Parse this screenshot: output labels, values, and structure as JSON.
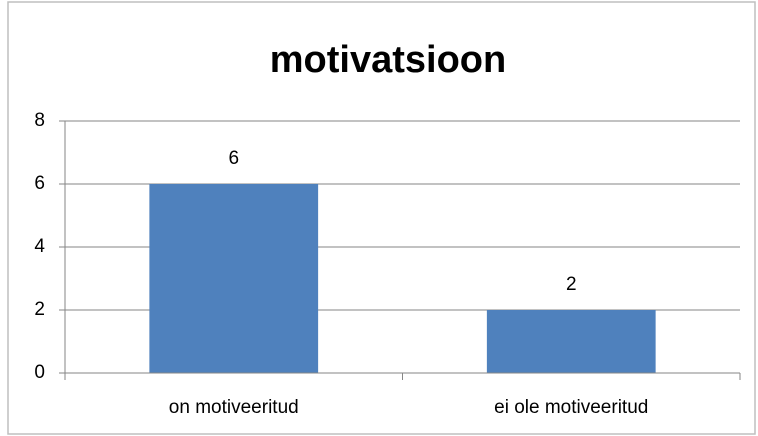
{
  "chart_data": {
    "type": "bar",
    "title": "motivatsioon",
    "categories": [
      "on motiveeritud",
      "ei ole motiveeritud"
    ],
    "values": [
      6,
      2
    ],
    "color": "#4f81bd",
    "ylim": [
      0,
      8
    ],
    "yticks": [
      0,
      2,
      4,
      6,
      8
    ],
    "grid": true
  }
}
